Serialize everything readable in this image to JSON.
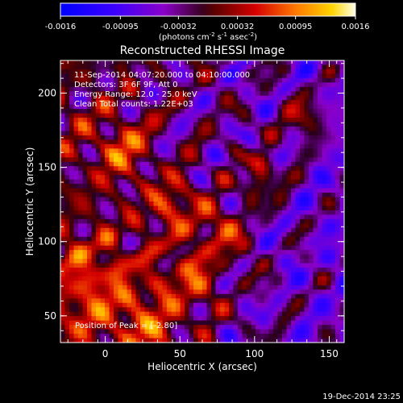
{
  "colorbar": {
    "ticks": [
      "-0.0016",
      "-0.00095",
      "-0.00032",
      "0.00032",
      "0.00095",
      "0.0016"
    ],
    "units_prefix": "(photons cm",
    "units_sup1": "-2",
    "units_mid": " s",
    "units_sup2": "-1",
    "units_mid2": " asec",
    "units_sup3": "-2",
    "units_suffix": ")"
  },
  "plot": {
    "title": "Reconstructed RHESSI Image",
    "xlabel": "Heliocentric X (arcsec)",
    "ylabel": "Heliocentric Y (arcsec)",
    "x_ticks": [
      "0",
      "50",
      "100",
      "150"
    ],
    "y_ticks": [
      "50",
      "100",
      "150",
      "200"
    ],
    "annotation": {
      "time_range": "11-Sep-2014 04:07:20.000 to 04:10:00.000",
      "detectors": "Detectors: 3F 6F 9F, Att 0",
      "energy": "Energy Range: 12.0 - 25.0 keV",
      "clean": "Clean     Total counts: 1.22E+03",
      "peak": "Position of Peak = [-2.80]"
    }
  },
  "footer": {
    "timestamp": "19-Dec-2014 23:25"
  },
  "colors": {
    "background": "#000000",
    "axis": "#ffffff"
  },
  "chart_data": {
    "type": "heatmap",
    "title": "Reconstructed RHESSI Image",
    "xlabel": "Heliocentric X (arcsec)",
    "ylabel": "Heliocentric Y (arcsec)",
    "xlim": [
      -30,
      160
    ],
    "ylim": [
      32,
      222
    ],
    "color_range": [
      -0.0016,
      0.0016
    ]
  }
}
